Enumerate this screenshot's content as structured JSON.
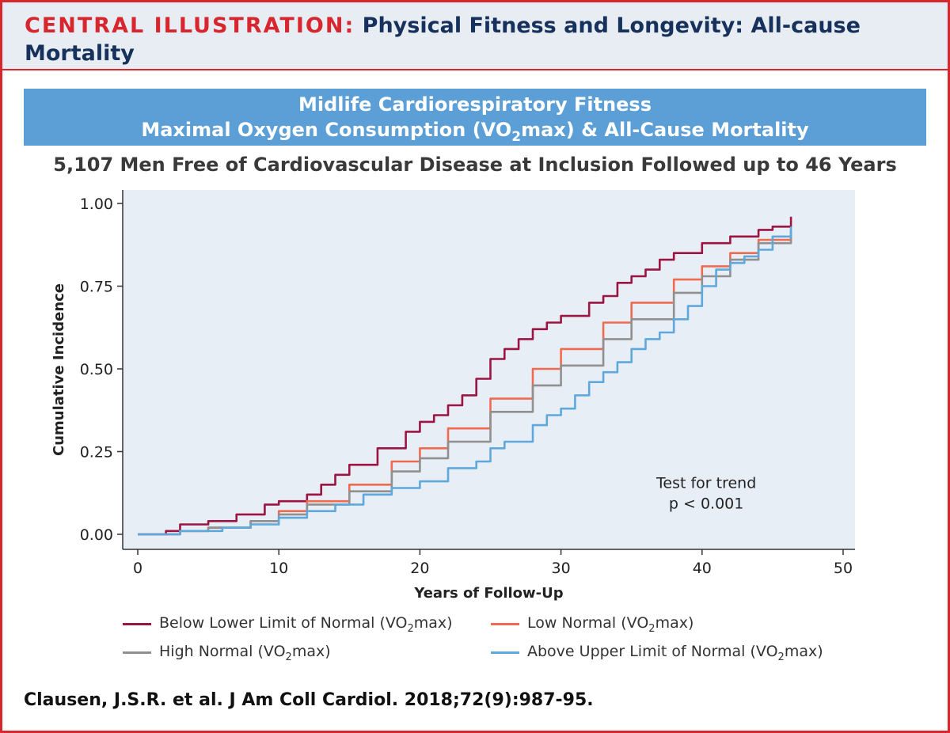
{
  "header": {
    "label": "CENTRAL ILLUSTRATION:",
    "title": "Physical Fitness and Longevity: All-cause Mortality"
  },
  "banner": {
    "line1": "Midlife Cardiorespiratory Fitness",
    "line2_before": "Maximal Oxygen Consumption (VO",
    "line2_sub": "2",
    "line2_after": "max) & All-Cause Mortality"
  },
  "subtitle": "5,107 Men Free of Cardiovascular Disease at Inclusion Followed up to 46 Years",
  "chart_data": {
    "type": "line",
    "title": "",
    "xlabel": "Years of Follow-Up",
    "ylabel": "Cumulative Incidence",
    "xlim": [
      0,
      50
    ],
    "ylim": [
      0,
      1
    ],
    "xticks": [
      "0",
      "10",
      "20",
      "30",
      "40",
      "50"
    ],
    "yticks": [
      "0.00",
      "0.25",
      "0.50",
      "0.75",
      "1.00"
    ],
    "annotation": [
      "Test for trend",
      "p < 0.001"
    ],
    "background": "#e8eef6",
    "series": [
      {
        "name": "Below Lower Limit of Normal (VO2max)",
        "color": "#9b1442",
        "x": [
          0,
          2,
          3,
          5,
          7,
          9,
          10,
          12,
          13,
          14,
          15,
          17,
          19,
          20,
          21,
          22,
          23,
          24,
          25,
          26,
          27,
          28,
          29,
          30,
          32,
          33,
          34,
          35,
          36,
          37,
          38,
          40,
          42,
          44,
          45,
          46.3
        ],
        "y": [
          0,
          0.01,
          0.03,
          0.04,
          0.06,
          0.09,
          0.1,
          0.12,
          0.15,
          0.18,
          0.21,
          0.26,
          0.31,
          0.34,
          0.36,
          0.39,
          0.42,
          0.47,
          0.53,
          0.56,
          0.59,
          0.62,
          0.64,
          0.66,
          0.7,
          0.72,
          0.76,
          0.78,
          0.8,
          0.83,
          0.85,
          0.88,
          0.9,
          0.92,
          0.93,
          0.96
        ]
      },
      {
        "name": "Low Normal (VO2max)",
        "color": "#f06a50",
        "x": [
          0,
          3,
          5,
          8,
          10,
          12,
          15,
          18,
          20,
          22,
          25,
          28,
          30,
          33,
          35,
          38,
          40,
          42,
          44,
          46.3
        ],
        "y": [
          0,
          0.01,
          0.02,
          0.04,
          0.07,
          0.1,
          0.15,
          0.22,
          0.26,
          0.32,
          0.41,
          0.5,
          0.56,
          0.64,
          0.7,
          0.77,
          0.81,
          0.85,
          0.89,
          0.92
        ]
      },
      {
        "name": "High Normal (VO2max)",
        "color": "#909090",
        "x": [
          0,
          3,
          5,
          8,
          10,
          12,
          15,
          18,
          20,
          22,
          25,
          28,
          30,
          33,
          35,
          38,
          40,
          42,
          44,
          46.3
        ],
        "y": [
          0,
          0.01,
          0.02,
          0.04,
          0.06,
          0.09,
          0.13,
          0.19,
          0.23,
          0.28,
          0.37,
          0.45,
          0.51,
          0.59,
          0.65,
          0.73,
          0.78,
          0.83,
          0.88,
          0.92
        ]
      },
      {
        "name": "Above Upper Limit of Normal (VO2max)",
        "color": "#5ea8dc",
        "x": [
          0,
          3,
          6,
          8,
          10,
          12,
          14,
          16,
          18,
          20,
          22,
          24,
          25,
          26,
          28,
          29,
          30,
          31,
          32,
          33,
          34,
          35,
          36,
          37,
          38,
          39,
          40,
          41,
          42,
          43,
          44,
          45,
          46.3
        ],
        "y": [
          0,
          0.01,
          0.02,
          0.03,
          0.05,
          0.07,
          0.09,
          0.12,
          0.14,
          0.16,
          0.2,
          0.22,
          0.26,
          0.28,
          0.33,
          0.36,
          0.38,
          0.42,
          0.46,
          0.49,
          0.52,
          0.56,
          0.59,
          0.61,
          0.65,
          0.69,
          0.75,
          0.8,
          0.82,
          0.84,
          0.86,
          0.9,
          0.93
        ]
      }
    ]
  },
  "legend": [
    {
      "name_before": "Below Lower Limit of Normal (VO",
      "sub": "2",
      "name_after": "max)",
      "color": "#9b1442"
    },
    {
      "name_before": "Low Normal (VO",
      "sub": "2",
      "name_after": "max)",
      "color": "#f06a50"
    },
    {
      "name_before": "High Normal (VO",
      "sub": "2",
      "name_after": "max)",
      "color": "#909090"
    },
    {
      "name_before": "Above Upper Limit of Normal (VO",
      "sub": "2",
      "name_after": "max)",
      "color": "#5ea8dc"
    }
  ],
  "citation": "Clausen, J.S.R. et al. J Am Coll Cardiol. 2018;72(9):987-95."
}
